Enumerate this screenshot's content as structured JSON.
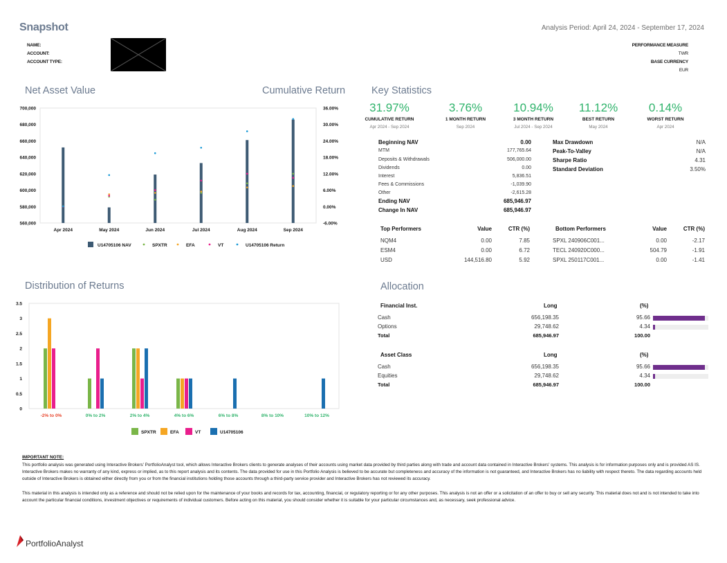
{
  "header": {
    "title": "Snapshot",
    "analysis_period": "Analysis Period: April 24, 2024 - September 17, 2024",
    "left_labels": [
      "NAME:",
      "ACCOUNT:",
      "ACCOUNT TYPE:"
    ],
    "performance_measure_label": "PERFORMANCE MEASURE",
    "performance_measure_value": "TWR",
    "base_currency_label": "BASE CURRENCY",
    "base_currency_value": "EUR"
  },
  "nav_section": {
    "title_left": "Net Asset Value",
    "title_right": "Cumulative Return"
  },
  "key_stats": {
    "title": "Key Statistics",
    "tiles": [
      {
        "value": "31.97%",
        "label": "CUMULATIVE RETURN",
        "sub": "Apr 2024 - Sep 2024"
      },
      {
        "value": "3.76%",
        "label": "1 MONTH RETURN",
        "sub": "Sep 2024"
      },
      {
        "value": "10.94%",
        "label": "3 MONTH RETURN",
        "sub": "Jul 2024 - Sep 2024"
      },
      {
        "value": "11.12%",
        "label": "BEST RETURN",
        "sub": "May 2024"
      },
      {
        "value": "0.14%",
        "label": "WORST RETURN",
        "sub": "Apr 2024"
      }
    ],
    "nav_rows": [
      {
        "label": "Beginning NAV",
        "value": "0.00",
        "bold": true
      },
      {
        "label": "MTM",
        "value": "177,765.64",
        "bold": false
      },
      {
        "label": "Deposits & Withdrawals",
        "value": "506,000.00",
        "bold": false
      },
      {
        "label": "Dividends",
        "value": "0.00",
        "bold": false
      },
      {
        "label": "Interest",
        "value": "5,836.51",
        "bold": false
      },
      {
        "label": "Fees & Commissions",
        "value": "-1,039.90",
        "bold": false
      },
      {
        "label": "Other",
        "value": "-2,615.28",
        "bold": false
      },
      {
        "label": "Ending NAV",
        "value": "685,946.97",
        "bold": true
      },
      {
        "label": "Change In NAV",
        "value": "685,946.97",
        "bold": true
      }
    ],
    "risk_rows": [
      {
        "label": "Max Drawdown",
        "value": "N/A"
      },
      {
        "label": "Peak-To-Valley",
        "value": "N/A"
      },
      {
        "label": "Sharpe Ratio",
        "value": "4.31"
      },
      {
        "label": "Standard Deviation",
        "value": "3.50%"
      }
    ]
  },
  "performers": {
    "top_headers": [
      "Top Performers",
      "Value",
      "CTR (%)"
    ],
    "top_rows": [
      [
        "NQM4",
        "0.00",
        "7.85"
      ],
      [
        "ESM4",
        "0.00",
        "6.72"
      ],
      [
        "USD",
        "144,516.80",
        "5.92"
      ]
    ],
    "bottom_headers": [
      "Bottom Performers",
      "Value",
      "CTR (%)"
    ],
    "bottom_rows": [
      [
        "SPXL  240906C001...",
        "0.00",
        "-2.17"
      ],
      [
        "TECL  240920C000...",
        "504.79",
        "-1.91"
      ],
      [
        "SPXL  250117C001...",
        "0.00",
        "-1.41"
      ]
    ]
  },
  "distribution": {
    "title": "Distribution of Returns"
  },
  "allocation": {
    "title": "Allocation",
    "tables": [
      {
        "headers": [
          "Financial Inst.",
          "Long",
          "(%)"
        ],
        "rows": [
          {
            "label": "Cash",
            "long": "656,198.35",
            "pct": "95.66",
            "fill": 0.9566
          },
          {
            "label": "Options",
            "long": "29,748.62",
            "pct": "4.34",
            "fill": 0.0434
          }
        ],
        "total": {
          "label": "Total",
          "long": "685,946.97",
          "pct": "100.00"
        }
      },
      {
        "headers": [
          "Asset Class",
          "Long",
          "(%)"
        ],
        "rows": [
          {
            "label": "Cash",
            "long": "656,198.35",
            "pct": "95.66",
            "fill": 0.9566
          },
          {
            "label": "Equities",
            "long": "29,748.62",
            "pct": "4.34",
            "fill": 0.0434
          }
        ],
        "total": {
          "label": "Total",
          "long": "685,946.97",
          "pct": "100.00"
        }
      }
    ]
  },
  "notes": {
    "heading": "IMPORTANT NOTE:",
    "p1": "This portfolio analysis was generated using Interactive Brokers' PortfolioAnalyst tool, which allows Interactive Brokers clients to generate analyses of their accounts using market data provided by third parties along with trade and account data contained in Interactive Brokers' systems. This analysis is for information purposes only and is provided AS IS. Interactive Brokers makes no warranty of any kind, express or implied, as to this report analysis and its contents. The data provided for use in this Portfolio Analysis is believed to be accurate but completeness and accuracy of the information is not guaranteed, and Interactive Brokers has no liability with respect thereto. The data regarding accounts held outside of Interactive Brokers is obtained either directly from you or from the financial institutions holding those accounts through a third-party service provider and Interactive Brokers has not reviewed its accuracy.",
    "p2": "This material in this analysis is intended only as a reference and should not be relied upon for the maintenance of your books and records for tax, accounting, financial, or regulatory reporting or for any other purposes. This analysis is not an offer or a solicitation of an offer to buy or sell any security. This material does not and is not intended to take into account the particular financial conditions, investment objectives or requirements of individual customers. Before acting on this material, you should consider whether it is suitable for your particular circumstances and, as necessary, seek professional advice."
  },
  "footer": {
    "brand": "PortfolioAnalyst",
    "brand_color": "#d81f26"
  },
  "chart_data": [
    {
      "type": "bar",
      "title": "Net Asset Value / Cumulative Return",
      "categories": [
        "Apr 2024",
        "May 2024",
        "Jun 2024",
        "Jul 2024",
        "Aug 2024",
        "Sep 2024"
      ],
      "ylim": [
        560000,
        700000
      ],
      "y_ticks": [
        "700,000",
        "680,000",
        "660,000",
        "640,000",
        "620,000",
        "600,000",
        "580,000",
        "560,000"
      ],
      "y2lim": [
        -6,
        36
      ],
      "y2_ticks": [
        "36.00%",
        "30.00%",
        "24.00%",
        "18.00%",
        "12.00%",
        "6.00%",
        "0.00%",
        "-6.00%"
      ],
      "nav_series": {
        "name": "U14705106 NAV",
        "color": "#3d5a73",
        "values": [
          652000,
          579000,
          619000,
          633000,
          661000,
          686000
        ]
      },
      "return_series": [
        {
          "name": "SPXTR",
          "color": "#7ab648",
          "values": [
            0.1,
            3.6,
            2.5,
            5.0,
            8.5,
            12.0
          ]
        },
        {
          "name": "EFA",
          "color": "#f5a623",
          "values": [
            0.1,
            4.5,
            5.0,
            5.5,
            7.0,
            7.5
          ]
        },
        {
          "name": "VT",
          "color": "#e91e8c",
          "values": [
            0.0,
            4.0,
            6.0,
            9.5,
            12.0,
            10.5
          ]
        },
        {
          "name": "U14705106 Return",
          "color": "#1a9ad6",
          "values": [
            0.1,
            11.5,
            19.5,
            21.5,
            27.5,
            32.0
          ]
        }
      ],
      "legend": [
        "U14705106 NAV",
        "SPXTR",
        "EFA",
        "VT",
        "U14705106 Return"
      ],
      "legend_position": "bottom"
    },
    {
      "type": "bar",
      "title": "Distribution of Returns",
      "categories": [
        "-2% to 0%",
        "0% to 2%",
        "2% to 4%",
        "4% to 6%",
        "6% to 8%",
        "8% to 10%",
        "10% to 12%"
      ],
      "category_colors": [
        "#e8452c",
        "#2fb36b",
        "#2fb36b",
        "#2fb36b",
        "#2fb36b",
        "#2fb36b",
        "#2fb36b"
      ],
      "ylim": [
        0,
        3.5
      ],
      "y_ticks": [
        "3.5",
        "3",
        "2.5",
        "2",
        "1.5",
        "1",
        "0.5",
        "0"
      ],
      "series": [
        {
          "name": "SPXTR",
          "color": "#7ab648",
          "values": [
            2,
            1,
            2,
            1,
            0,
            0,
            0
          ]
        },
        {
          "name": "EFA",
          "color": "#f5a623",
          "values": [
            3,
            0,
            2,
            1,
            0,
            0,
            0
          ]
        },
        {
          "name": "VT",
          "color": "#e91e8c",
          "values": [
            2,
            2,
            1,
            1,
            0,
            0,
            0
          ]
        },
        {
          "name": "U14705106",
          "color": "#1a6fb0",
          "values": [
            0,
            1,
            2,
            1,
            1,
            0,
            1
          ]
        }
      ],
      "legend_position": "bottom"
    }
  ]
}
